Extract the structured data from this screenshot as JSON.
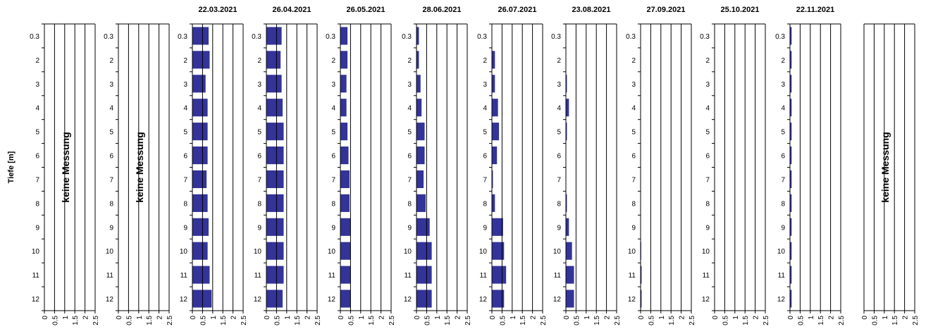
{
  "chart_data": {
    "type": "bar",
    "orientation": "horizontal",
    "ylabel": "Tiefe [m]",
    "depth_labels": [
      "0.3",
      "2",
      "3",
      "4",
      "5",
      "6",
      "7",
      "8",
      "9",
      "10",
      "11",
      "12"
    ],
    "x_ticks": [
      "0",
      "0.5",
      "1",
      "1.5",
      "2",
      "2.5"
    ],
    "xlim": [
      0,
      2.5
    ],
    "bar_color": "#333399",
    "no_measurement_text": "keine Messung",
    "panels": [
      {
        "title": "",
        "measured": false,
        "values": []
      },
      {
        "title": "",
        "measured": false,
        "values": []
      },
      {
        "title": "22.03.2021",
        "measured": true,
        "values": [
          0.8,
          0.85,
          0.65,
          0.75,
          0.75,
          0.75,
          0.7,
          0.75,
          0.8,
          0.75,
          0.85,
          0.95
        ]
      },
      {
        "title": "26.04.2021",
        "measured": true,
        "values": [
          0.75,
          0.7,
          0.75,
          0.8,
          0.85,
          0.85,
          0.85,
          0.85,
          0.85,
          0.85,
          0.85,
          0.8
        ]
      },
      {
        "title": "26.05.2021",
        "measured": true,
        "values": [
          0.35,
          0.35,
          0.3,
          0.3,
          0.35,
          0.4,
          0.45,
          0.45,
          0.5,
          0.5,
          0.5,
          0.5
        ]
      },
      {
        "title": "28.06.2021",
        "measured": true,
        "values": [
          0.12,
          0.12,
          0.2,
          0.25,
          0.4,
          0.4,
          0.35,
          0.45,
          0.65,
          0.75,
          0.75,
          0.75
        ]
      },
      {
        "title": "26.07.2021",
        "measured": true,
        "values": [
          0.0,
          0.15,
          0.15,
          0.3,
          0.35,
          0.25,
          0.05,
          0.15,
          0.55,
          0.6,
          0.7,
          0.6
        ]
      },
      {
        "title": "23.08.2021",
        "measured": true,
        "values": [
          0.0,
          0.0,
          0.05,
          0.15,
          0.05,
          0.0,
          0.0,
          0.05,
          0.15,
          0.3,
          0.4,
          0.4
        ]
      },
      {
        "title": "27.09.2021",
        "measured": true,
        "values": [
          0,
          0,
          0,
          0,
          0,
          0,
          0,
          0,
          0,
          0.03,
          0.05,
          0.05
        ]
      },
      {
        "title": "25.10.2021",
        "measured": true,
        "values": [
          0,
          0,
          0,
          0,
          0,
          0,
          0,
          0,
          0,
          0,
          0,
          0
        ]
      },
      {
        "title": "22.11.2021",
        "measured": true,
        "values": [
          0.08,
          0.08,
          0.08,
          0.08,
          0.08,
          0.08,
          0.08,
          0.08,
          0.08,
          0.08,
          0.08,
          0.08
        ]
      },
      {
        "title": "",
        "measured": false,
        "values": []
      }
    ]
  }
}
